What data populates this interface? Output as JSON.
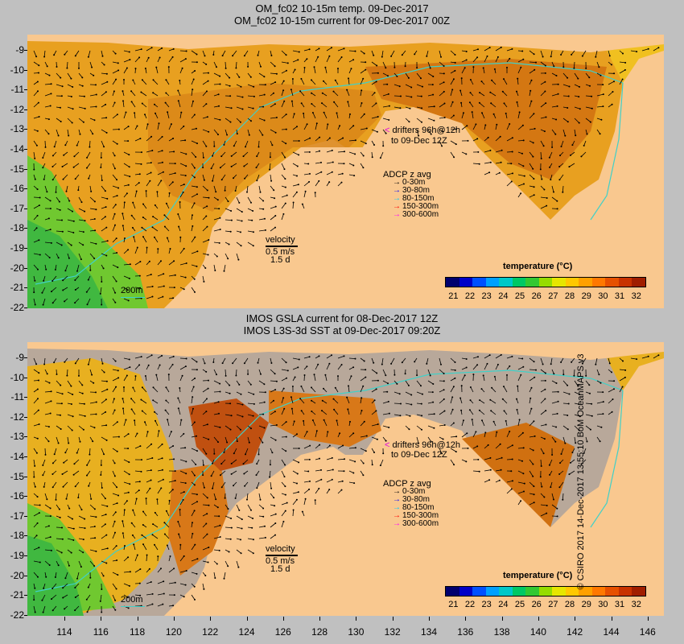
{
  "top_panel": {
    "title_line1": "OM_fc02 10-15m temp. 09-Dec-2017",
    "title_line2": "OM_fc02 10-15m current for 09-Dec-2017 00Z",
    "drifters_line1": "drifters 96h@12h",
    "drifters_line2": "to 09-Dec 12Z",
    "adcp_title": "ADCP z avg",
    "adcp_items": [
      {
        "label": "0-30m",
        "color": "#000000"
      },
      {
        "label": "30-80m",
        "color": "#0000ff"
      },
      {
        "label": "80-150m",
        "color": "#00c8ff"
      },
      {
        "label": "150-300m",
        "color": "#ff0000"
      },
      {
        "label": "300-600m",
        "color": "#ff00ff"
      }
    ],
    "velocity_label": "velocity",
    "velocity_scale": "0.5 m/s",
    "velocity_time": "1.5 d",
    "isobath_label": "200m",
    "colorbar_title": "temperature (°C)"
  },
  "bottom_panel": {
    "title_line1": "IMOS GSLA current for 08-Dec-2017 12Z",
    "title_line2": "IMOS L3S-3d SST at 09-Dec-2017 09:20Z",
    "drifters_line1": "drifters 96h@12h",
    "drifters_line2": "to 09-Dec 12Z",
    "adcp_title": "ADCP z avg",
    "adcp_items": [
      {
        "label": "0-30m",
        "color": "#000000"
      },
      {
        "label": "30-80m",
        "color": "#0000ff"
      },
      {
        "label": "80-150m",
        "color": "#00c8ff"
      },
      {
        "label": "150-300m",
        "color": "#ff0000"
      },
      {
        "label": "300-600m",
        "color": "#ff00ff"
      }
    ],
    "velocity_label": "velocity",
    "velocity_scale": "0.5 m/s",
    "velocity_time": "1.5 d",
    "isobath_label": "200m",
    "colorbar_title": "temperature (°C)"
  },
  "colorbar_ticks": [
    "21",
    "22",
    "23",
    "24",
    "25",
    "26",
    "27",
    "28",
    "29",
    "30",
    "31",
    "32"
  ],
  "colorbar_colors": [
    "#00006e",
    "#0000c8",
    "#0050ff",
    "#00a0ff",
    "#00c8c8",
    "#00c864",
    "#32c832",
    "#96dc00",
    "#e6e600",
    "#ffc800",
    "#ffa000",
    "#ff7800",
    "#e65000",
    "#c83200",
    "#a01e00"
  ],
  "lat_ticks": [
    "-9",
    "-10",
    "-11",
    "-12",
    "-13",
    "-14",
    "-15",
    "-16",
    "-17",
    "-18",
    "-19",
    "-20",
    "-21",
    "-22"
  ],
  "lon_ticks": [
    "114",
    "116",
    "118",
    "120",
    "122",
    "124",
    "126",
    "128",
    "130",
    "132",
    "134",
    "136",
    "138",
    "140",
    "142",
    "144",
    "146"
  ],
  "credit": "© CSIRO 2017  14-Dec-2017 13:55:10 BoM OceanMAPS v3",
  "colors": {
    "land": "#f9c88f",
    "ocean_warm": "#e8a020",
    "ocean_hot": "#d07010",
    "ocean_cool": "#50c830",
    "cloud_gray": "#b8a89a",
    "isobath": "#40d0c8"
  }
}
